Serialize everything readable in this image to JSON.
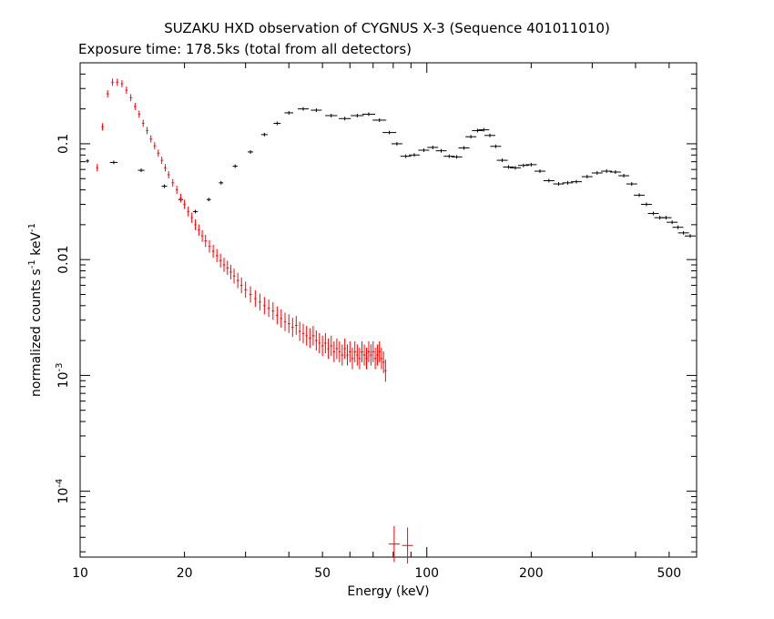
{
  "chart_data": {
    "type": "scatter",
    "title": "SUZAKU HXD observation of CYGNUS X-3 (Sequence 401011010)",
    "subtitle": "Exposure time: 178.5ks (total from all detectors)",
    "xlabel": "Energy (keV)",
    "ylabel": {
      "text": "normalized counts s",
      "sup1": "-1",
      "mid": " keV",
      "sup2": "-1"
    },
    "x_scale": "log",
    "y_scale": "log",
    "xlim": [
      10,
      600
    ],
    "ylim": [
      2.7e-05,
      0.5
    ],
    "x_ticks": [
      10,
      20,
      50,
      100,
      200,
      500
    ],
    "x_tick_labels": [
      "10",
      "20",
      "50",
      "100",
      "200",
      "500"
    ],
    "y_ticks": [
      {
        "value": 0.1,
        "base": "0.1",
        "exp": ""
      },
      {
        "value": 0.01,
        "base": "0.01",
        "exp": ""
      },
      {
        "value": 0.001,
        "base": "10",
        "exp": "-3"
      },
      {
        "value": 0.0001,
        "base": "10",
        "exp": "-4"
      }
    ],
    "grid": false,
    "legend": "none",
    "series": [
      {
        "color": "#000000",
        "points": [
          [
            10.5,
            0.071,
            0.6
          ],
          [
            12.5,
            0.069,
            1.4
          ],
          [
            15,
            0.059,
            1.2
          ],
          [
            17.5,
            0.043,
            1.0
          ],
          [
            19.5,
            0.033,
            0.9
          ],
          [
            21.5,
            0.026,
            0.9
          ],
          [
            23.5,
            0.033,
            0.8
          ],
          [
            25.5,
            0.046,
            0.8
          ],
          [
            28,
            0.064,
            0.9
          ],
          [
            31,
            0.085,
            1.0
          ],
          [
            34,
            0.12,
            1.2
          ],
          [
            37,
            0.15,
            1.3
          ],
          [
            40,
            0.185,
            1.6
          ],
          [
            44,
            0.2,
            2.0
          ],
          [
            48,
            0.195,
            2.0
          ],
          [
            53,
            0.175,
            2.2
          ],
          [
            58,
            0.165,
            2.2
          ],
          [
            63,
            0.175,
            2.4
          ],
          [
            68,
            0.18,
            2.4
          ],
          [
            73,
            0.16,
            2.5
          ],
          [
            78,
            0.125,
            2.5
          ],
          [
            82,
            0.1,
            2.0
          ],
          [
            87,
            0.078,
            2.0
          ],
          [
            92,
            0.08,
            2.0
          ],
          [
            98,
            0.088,
            2.0
          ],
          [
            104,
            0.093,
            2.0
          ],
          [
            110,
            0.087,
            2.0
          ],
          [
            116,
            0.078,
            2.0
          ],
          [
            122,
            0.077,
            2.0
          ],
          [
            128,
            0.092,
            2.0
          ],
          [
            134,
            0.115,
            2.0
          ],
          [
            140,
            0.13,
            2.0
          ],
          [
            146,
            0.132,
            2.0
          ],
          [
            152,
            0.118,
            2.0
          ],
          [
            158,
            0.095,
            2.0
          ],
          [
            165,
            0.072,
            2.0
          ],
          [
            172,
            0.063,
            2.0
          ],
          [
            180,
            0.062,
            2.0
          ],
          [
            190,
            0.065,
            2.0
          ],
          [
            200,
            0.066,
            2.0
          ],
          [
            212,
            0.058,
            2.0
          ],
          [
            225,
            0.048,
            2.0
          ],
          [
            240,
            0.045,
            2.0
          ],
          [
            255,
            0.046,
            2.0
          ],
          [
            270,
            0.047,
            2.0
          ],
          [
            290,
            0.052,
            2.0
          ],
          [
            310,
            0.056,
            2.0
          ],
          [
            330,
            0.058,
            2.0
          ],
          [
            350,
            0.057,
            2.0
          ],
          [
            370,
            0.053,
            2.0
          ],
          [
            390,
            0.045,
            2.0
          ],
          [
            410,
            0.036,
            2.0
          ],
          [
            430,
            0.03,
            2.0
          ],
          [
            450,
            0.025,
            2.0
          ],
          [
            470,
            0.023,
            2.0
          ],
          [
            490,
            0.023,
            2.0
          ],
          [
            510,
            0.021,
            2.0
          ],
          [
            530,
            0.019,
            2.0
          ],
          [
            550,
            0.017,
            2.0
          ],
          [
            575,
            0.016,
            2.0
          ]
        ]
      },
      {
        "color": "#ff0000",
        "points": [
          [
            11.2,
            0.062,
            0.4
          ],
          [
            11.6,
            0.14,
            0.4
          ],
          [
            12.0,
            0.27,
            0.4
          ],
          [
            12.4,
            0.34,
            0.4
          ],
          [
            12.8,
            0.34,
            0.4
          ],
          [
            13.2,
            0.33,
            0.4
          ],
          [
            13.6,
            0.29,
            0.4
          ],
          [
            14.0,
            0.25,
            0.4
          ],
          [
            14.4,
            0.21,
            0.4
          ],
          [
            14.8,
            0.18,
            0.4
          ],
          [
            15.2,
            0.15,
            0.4
          ],
          [
            15.6,
            0.13,
            0.4
          ],
          [
            16.0,
            0.11,
            0.4
          ],
          [
            16.4,
            0.096,
            0.4
          ],
          [
            16.8,
            0.083,
            0.4
          ],
          [
            17.2,
            0.072,
            0.4
          ],
          [
            17.6,
            0.062,
            0.4
          ],
          [
            18.0,
            0.054,
            0.4
          ],
          [
            18.5,
            0.046,
            0.4
          ],
          [
            19.0,
            0.04,
            0.4
          ],
          [
            19.5,
            0.034,
            0.4
          ],
          [
            20.0,
            0.03,
            0.4
          ],
          [
            20.5,
            0.026,
            0.4
          ],
          [
            21.0,
            0.023,
            0.4
          ],
          [
            21.5,
            0.02,
            0.4
          ],
          [
            22.0,
            0.018,
            0.4
          ],
          [
            22.5,
            0.016,
            0.4
          ],
          [
            23.0,
            0.0145,
            0.4
          ],
          [
            23.6,
            0.013,
            0.4
          ],
          [
            24.2,
            0.0118,
            0.4
          ],
          [
            24.8,
            0.0108,
            0.4
          ],
          [
            25.4,
            0.0098,
            0.4
          ],
          [
            26.0,
            0.009,
            0.4
          ],
          [
            26.6,
            0.0085,
            0.4
          ],
          [
            27.2,
            0.0078,
            0.4
          ],
          [
            27.8,
            0.0072,
            0.4
          ],
          [
            28.5,
            0.0066,
            0.4
          ],
          [
            29.2,
            0.006,
            0.4
          ],
          [
            30.0,
            0.0055,
            0.4
          ],
          [
            31.0,
            0.005,
            0.4
          ],
          [
            32.0,
            0.0046,
            0.4
          ],
          [
            33.0,
            0.0043,
            0.4
          ],
          [
            34.0,
            0.004,
            0.4
          ],
          [
            35.0,
            0.0038,
            0.4
          ],
          [
            36.0,
            0.0036,
            0.4
          ],
          [
            37.0,
            0.0033,
            0.4
          ],
          [
            38.0,
            0.0031,
            0.4
          ],
          [
            39.0,
            0.0029,
            0.4
          ],
          [
            40.0,
            0.0028,
            0.4
          ],
          [
            41.0,
            0.0026,
            0.4
          ],
          [
            42.0,
            0.0027,
            0.4
          ],
          [
            43.0,
            0.0024,
            0.4
          ],
          [
            44.0,
            0.0023,
            0.4
          ],
          [
            45.0,
            0.0022,
            0.4
          ],
          [
            46.0,
            0.0021,
            0.4
          ],
          [
            47.0,
            0.0022,
            0.4
          ],
          [
            48.0,
            0.002,
            0.4
          ],
          [
            49.0,
            0.0019,
            0.4
          ],
          [
            50.0,
            0.0018,
            0.4
          ],
          [
            51.0,
            0.0019,
            0.4
          ],
          [
            52.0,
            0.0017,
            0.4
          ],
          [
            53.0,
            0.0018,
            0.4
          ],
          [
            54.0,
            0.0016,
            0.4
          ],
          [
            55.0,
            0.0017,
            0.4
          ],
          [
            56.0,
            0.0016,
            0.4
          ],
          [
            57.0,
            0.0015,
            0.4
          ],
          [
            58.0,
            0.0017,
            0.4
          ],
          [
            59.0,
            0.0015,
            0.4
          ],
          [
            60.0,
            0.0016,
            0.4
          ],
          [
            61.0,
            0.0014,
            0.4
          ],
          [
            62.0,
            0.0016,
            0.4
          ],
          [
            63.0,
            0.0015,
            0.4
          ],
          [
            64.0,
            0.0014,
            0.4
          ],
          [
            65.0,
            0.0016,
            0.4
          ],
          [
            66.0,
            0.0015,
            0.4
          ],
          [
            67.0,
            0.0014,
            0.4
          ],
          [
            68.0,
            0.0016,
            0.4
          ],
          [
            69.0,
            0.0015,
            0.4
          ],
          [
            70.0,
            0.0016,
            0.4
          ],
          [
            71.0,
            0.0014,
            0.4
          ],
          [
            72.0,
            0.0015,
            0.4
          ],
          [
            73.0,
            0.0016,
            0.4
          ],
          [
            74.0,
            0.0014,
            0.4
          ],
          [
            75.0,
            0.0013,
            0.4
          ],
          [
            76.0,
            0.0011,
            0.4
          ],
          [
            80.5,
            3.5e-05,
            2.0
          ],
          [
            88.0,
            3.4e-05,
            2.0
          ]
        ]
      }
    ]
  }
}
